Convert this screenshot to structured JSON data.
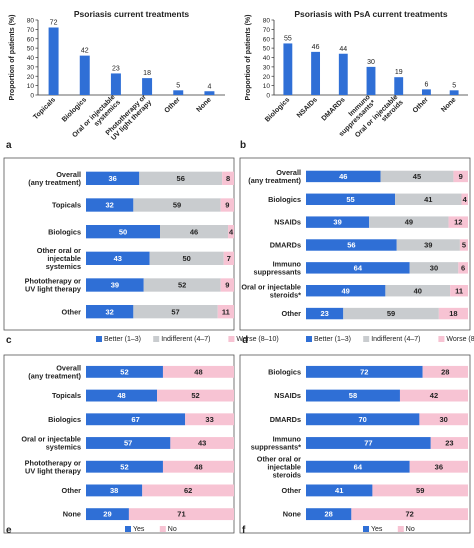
{
  "colors": {
    "blue": "#2f6fd6",
    "gray": "#c9cccf",
    "pink": "#f7c3d3",
    "axis": "#333333",
    "text": "#222222",
    "frame": "#555555"
  },
  "chart_data": [
    {
      "panel": "a",
      "type": "bar",
      "title": "Psoriasis current treatments",
      "ylabel": "Proportion of patients (%)",
      "ylim": [
        0,
        80
      ],
      "yticks": [
        0,
        10,
        20,
        30,
        40,
        50,
        60,
        70,
        80
      ],
      "categories": [
        "Topicals",
        "Biologics",
        "Oral or injectable systemics",
        "Phototherapy or UV light therapy",
        "Other",
        "None"
      ],
      "values": [
        72,
        42,
        23,
        18,
        5,
        4
      ]
    },
    {
      "panel": "b",
      "type": "bar",
      "title": "Psoriasis with PsA current treatments",
      "ylabel": "Proportion of patients (%)",
      "ylim": [
        0,
        80
      ],
      "yticks": [
        0,
        10,
        20,
        30,
        40,
        50,
        60,
        70,
        80
      ],
      "categories": [
        "Biologics",
        "NSAIDs",
        "DMARDs",
        "Immuno suppressants*",
        "Oral or injectable steroids",
        "Other",
        "None"
      ],
      "values": [
        55,
        46,
        44,
        30,
        19,
        6,
        5
      ]
    },
    {
      "panel": "c",
      "type": "bar",
      "orientation": "horizontal-stacked",
      "categories": [
        "Overall (any treatment)",
        "Topicals",
        "Biologics",
        "Other oral or injectable systemics",
        "Phototherapy or UV light therapy",
        "Other"
      ],
      "series": [
        {
          "values": [
            36,
            32,
            50,
            43,
            39,
            32
          ]
        },
        {
          "values": [
            56,
            59,
            46,
            50,
            52,
            57
          ]
        },
        {
          "values": [
            8,
            9,
            4,
            7,
            9,
            11
          ]
        }
      ],
      "legend": {
        "placement": "bottom",
        "entries": [
          "Better (1–3)",
          "Indifferent (4–7)",
          "Worse (8–10)"
        ]
      }
    },
    {
      "panel": "d",
      "type": "bar",
      "orientation": "horizontal-stacked",
      "categories": [
        "Overall (any treatment)",
        "Biologics",
        "NSAIDs",
        "DMARDs",
        "Immuno suppressants",
        "Oral or injectable steroids*",
        "Other"
      ],
      "series": [
        {
          "values": [
            46,
            55,
            39,
            56,
            64,
            49,
            23
          ]
        },
        {
          "values": [
            45,
            41,
            49,
            39,
            30,
            40,
            59
          ]
        },
        {
          "values": [
            9,
            4,
            12,
            5,
            6,
            11,
            18
          ]
        }
      ],
      "legend": {
        "placement": "bottom",
        "entries": [
          "Better (1–3)",
          "Indifferent (4–7)",
          "Worse (8–10)"
        ]
      }
    },
    {
      "panel": "e",
      "type": "bar",
      "orientation": "horizontal-stacked",
      "categories": [
        "Overall (any treatment)",
        "Topicals",
        "Biologics",
        "Oral or injectable systemics",
        "Phototherapy or UV light therapy",
        "Other",
        "None"
      ],
      "series": [
        {
          "values": [
            52,
            48,
            67,
            57,
            52,
            38,
            29
          ]
        },
        {
          "values": [
            48,
            52,
            33,
            43,
            48,
            62,
            71
          ]
        }
      ],
      "legend": {
        "placement": "bottom",
        "entries": [
          "Yes",
          "No"
        ]
      }
    },
    {
      "panel": "f",
      "type": "bar",
      "orientation": "horizontal-stacked",
      "categories": [
        "Biologics",
        "NSAIDs",
        "DMARDs",
        "Immuno suppressants*",
        "Other oral or injectable steroids",
        "Other",
        "None"
      ],
      "series": [
        {
          "values": [
            72,
            58,
            70,
            77,
            64,
            41,
            28
          ]
        },
        {
          "values": [
            28,
            42,
            30,
            23,
            36,
            59,
            72
          ]
        }
      ],
      "legend": {
        "placement": "bottom",
        "entries": [
          "Yes",
          "No"
        ]
      }
    }
  ]
}
